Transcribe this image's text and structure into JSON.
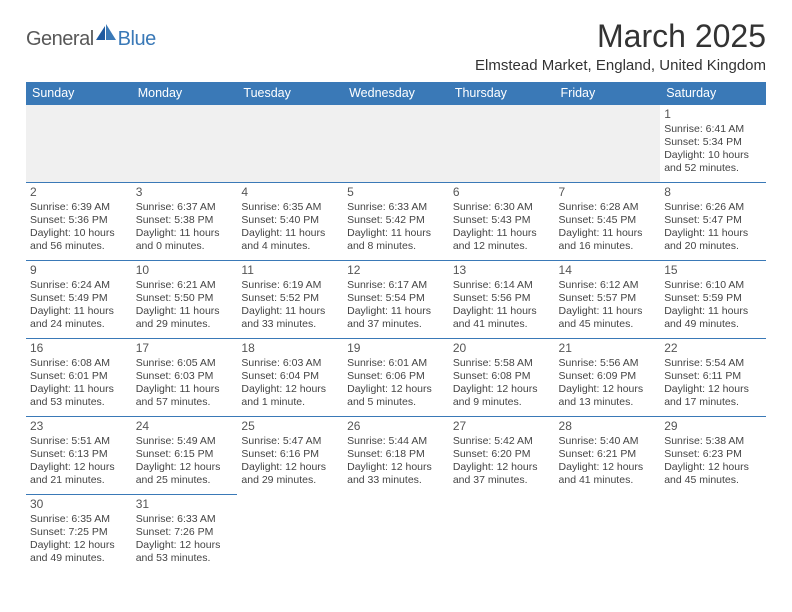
{
  "logo": {
    "text1": "General",
    "text2": "Blue"
  },
  "title": "March 2025",
  "location": "Elmstead Market, England, United Kingdom",
  "colors": {
    "header_bg": "#3a79b7",
    "header_text": "#ffffff",
    "border": "#3a79b7",
    "empty_bg": "#f0f0f0",
    "body_text": "#444444",
    "daynum": "#555555",
    "logo_gray": "#585858",
    "logo_blue": "#3a79b7"
  },
  "typography": {
    "title_fontsize": 32,
    "location_fontsize": 15,
    "dayheader_fontsize": 12.5,
    "cell_fontsize": 10.5,
    "daynum_fontsize": 12
  },
  "day_headers": [
    "Sunday",
    "Monday",
    "Tuesday",
    "Wednesday",
    "Thursday",
    "Friday",
    "Saturday"
  ],
  "weeks": [
    [
      null,
      null,
      null,
      null,
      null,
      null,
      {
        "d": "1",
        "sr": "Sunrise: 6:41 AM",
        "ss": "Sunset: 5:34 PM",
        "dl": "Daylight: 10 hours and 52 minutes."
      }
    ],
    [
      {
        "d": "2",
        "sr": "Sunrise: 6:39 AM",
        "ss": "Sunset: 5:36 PM",
        "dl": "Daylight: 10 hours and 56 minutes."
      },
      {
        "d": "3",
        "sr": "Sunrise: 6:37 AM",
        "ss": "Sunset: 5:38 PM",
        "dl": "Daylight: 11 hours and 0 minutes."
      },
      {
        "d": "4",
        "sr": "Sunrise: 6:35 AM",
        "ss": "Sunset: 5:40 PM",
        "dl": "Daylight: 11 hours and 4 minutes."
      },
      {
        "d": "5",
        "sr": "Sunrise: 6:33 AM",
        "ss": "Sunset: 5:42 PM",
        "dl": "Daylight: 11 hours and 8 minutes."
      },
      {
        "d": "6",
        "sr": "Sunrise: 6:30 AM",
        "ss": "Sunset: 5:43 PM",
        "dl": "Daylight: 11 hours and 12 minutes."
      },
      {
        "d": "7",
        "sr": "Sunrise: 6:28 AM",
        "ss": "Sunset: 5:45 PM",
        "dl": "Daylight: 11 hours and 16 minutes."
      },
      {
        "d": "8",
        "sr": "Sunrise: 6:26 AM",
        "ss": "Sunset: 5:47 PM",
        "dl": "Daylight: 11 hours and 20 minutes."
      }
    ],
    [
      {
        "d": "9",
        "sr": "Sunrise: 6:24 AM",
        "ss": "Sunset: 5:49 PM",
        "dl": "Daylight: 11 hours and 24 minutes."
      },
      {
        "d": "10",
        "sr": "Sunrise: 6:21 AM",
        "ss": "Sunset: 5:50 PM",
        "dl": "Daylight: 11 hours and 29 minutes."
      },
      {
        "d": "11",
        "sr": "Sunrise: 6:19 AM",
        "ss": "Sunset: 5:52 PM",
        "dl": "Daylight: 11 hours and 33 minutes."
      },
      {
        "d": "12",
        "sr": "Sunrise: 6:17 AM",
        "ss": "Sunset: 5:54 PM",
        "dl": "Daylight: 11 hours and 37 minutes."
      },
      {
        "d": "13",
        "sr": "Sunrise: 6:14 AM",
        "ss": "Sunset: 5:56 PM",
        "dl": "Daylight: 11 hours and 41 minutes."
      },
      {
        "d": "14",
        "sr": "Sunrise: 6:12 AM",
        "ss": "Sunset: 5:57 PM",
        "dl": "Daylight: 11 hours and 45 minutes."
      },
      {
        "d": "15",
        "sr": "Sunrise: 6:10 AM",
        "ss": "Sunset: 5:59 PM",
        "dl": "Daylight: 11 hours and 49 minutes."
      }
    ],
    [
      {
        "d": "16",
        "sr": "Sunrise: 6:08 AM",
        "ss": "Sunset: 6:01 PM",
        "dl": "Daylight: 11 hours and 53 minutes."
      },
      {
        "d": "17",
        "sr": "Sunrise: 6:05 AM",
        "ss": "Sunset: 6:03 PM",
        "dl": "Daylight: 11 hours and 57 minutes."
      },
      {
        "d": "18",
        "sr": "Sunrise: 6:03 AM",
        "ss": "Sunset: 6:04 PM",
        "dl": "Daylight: 12 hours and 1 minute."
      },
      {
        "d": "19",
        "sr": "Sunrise: 6:01 AM",
        "ss": "Sunset: 6:06 PM",
        "dl": "Daylight: 12 hours and 5 minutes."
      },
      {
        "d": "20",
        "sr": "Sunrise: 5:58 AM",
        "ss": "Sunset: 6:08 PM",
        "dl": "Daylight: 12 hours and 9 minutes."
      },
      {
        "d": "21",
        "sr": "Sunrise: 5:56 AM",
        "ss": "Sunset: 6:09 PM",
        "dl": "Daylight: 12 hours and 13 minutes."
      },
      {
        "d": "22",
        "sr": "Sunrise: 5:54 AM",
        "ss": "Sunset: 6:11 PM",
        "dl": "Daylight: 12 hours and 17 minutes."
      }
    ],
    [
      {
        "d": "23",
        "sr": "Sunrise: 5:51 AM",
        "ss": "Sunset: 6:13 PM",
        "dl": "Daylight: 12 hours and 21 minutes."
      },
      {
        "d": "24",
        "sr": "Sunrise: 5:49 AM",
        "ss": "Sunset: 6:15 PM",
        "dl": "Daylight: 12 hours and 25 minutes."
      },
      {
        "d": "25",
        "sr": "Sunrise: 5:47 AM",
        "ss": "Sunset: 6:16 PM",
        "dl": "Daylight: 12 hours and 29 minutes."
      },
      {
        "d": "26",
        "sr": "Sunrise: 5:44 AM",
        "ss": "Sunset: 6:18 PM",
        "dl": "Daylight: 12 hours and 33 minutes."
      },
      {
        "d": "27",
        "sr": "Sunrise: 5:42 AM",
        "ss": "Sunset: 6:20 PM",
        "dl": "Daylight: 12 hours and 37 minutes."
      },
      {
        "d": "28",
        "sr": "Sunrise: 5:40 AM",
        "ss": "Sunset: 6:21 PM",
        "dl": "Daylight: 12 hours and 41 minutes."
      },
      {
        "d": "29",
        "sr": "Sunrise: 5:38 AM",
        "ss": "Sunset: 6:23 PM",
        "dl": "Daylight: 12 hours and 45 minutes."
      }
    ],
    [
      {
        "d": "30",
        "sr": "Sunrise: 6:35 AM",
        "ss": "Sunset: 7:25 PM",
        "dl": "Daylight: 12 hours and 49 minutes."
      },
      {
        "d": "31",
        "sr": "Sunrise: 6:33 AM",
        "ss": "Sunset: 7:26 PM",
        "dl": "Daylight: 12 hours and 53 minutes."
      },
      null,
      null,
      null,
      null,
      null
    ]
  ]
}
